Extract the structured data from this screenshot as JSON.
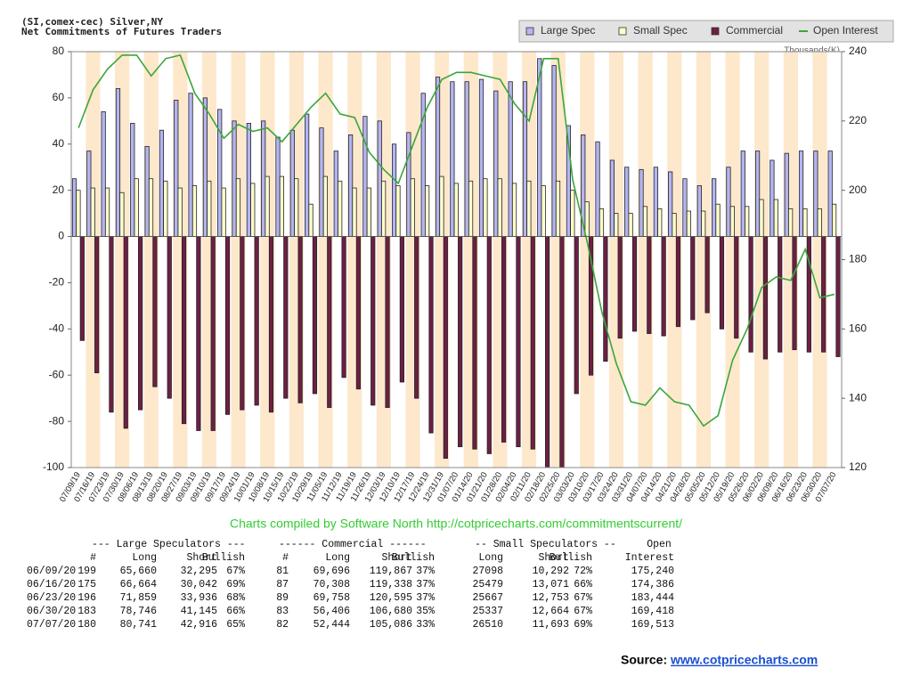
{
  "chart_data": {
    "type": "bar",
    "title": "(SI,comex-cec) Silver,NY",
    "subtitle": "Net Commitments of Futures Traders",
    "y2_label": "Thousands(K)",
    "annotation": "Charts compiled by Software North  http://cotpricecharts.com/commitmentscurrent/",
    "legend": "top-right",
    "categories": [
      "07/09/19",
      "07/16/19",
      "07/23/19",
      "07/30/19",
      "08/06/19",
      "08/13/19",
      "08/20/19",
      "08/27/19",
      "09/03/19",
      "09/10/19",
      "09/17/19",
      "09/24/19",
      "10/01/19",
      "10/08/19",
      "10/15/19",
      "10/22/19",
      "10/29/19",
      "11/05/19",
      "11/12/19",
      "11/19/19",
      "11/26/19",
      "12/03/19",
      "12/10/19",
      "12/17/19",
      "12/24/19",
      "12/31/19",
      "01/07/20",
      "01/14/20",
      "01/21/20",
      "01/28/20",
      "02/04/20",
      "02/11/20",
      "02/18/20",
      "02/25/20",
      "03/03/20",
      "03/10/20",
      "03/17/20",
      "03/24/20",
      "03/31/20",
      "04/07/20",
      "04/14/20",
      "04/21/20",
      "04/28/20",
      "05/05/20",
      "05/12/20",
      "05/19/20",
      "05/26/20",
      "06/02/20",
      "06/09/20",
      "06/16/20",
      "06/23/20",
      "06/30/20",
      "07/07/20"
    ],
    "series": [
      {
        "name": "Large Spec",
        "color": "#b4b4f0",
        "values": [
          25,
          37,
          54,
          64,
          49,
          39,
          46,
          59,
          62,
          60,
          55,
          50,
          49,
          50,
          43,
          46,
          53,
          47,
          37,
          44,
          52,
          50,
          40,
          45,
          62,
          69,
          67,
          67,
          68,
          63,
          67,
          67,
          77,
          74,
          48,
          44,
          41,
          33,
          30,
          29,
          30,
          28,
          25,
          22,
          25,
          30,
          37,
          37,
          33,
          36,
          37,
          37,
          37
        ]
      },
      {
        "name": "Small Spec",
        "color": "#ffffcc",
        "values": [
          20,
          21,
          21,
          19,
          25,
          25,
          24,
          21,
          22,
          24,
          21,
          25,
          23,
          26,
          26,
          25,
          14,
          26,
          24,
          21,
          21,
          24,
          22,
          25,
          22,
          26,
          23,
          24,
          25,
          25,
          23,
          24,
          22,
          24,
          20,
          15,
          12,
          10,
          10,
          13,
          12,
          10,
          11,
          11,
          14,
          13,
          13,
          16,
          16,
          12,
          12,
          12,
          14
        ]
      },
      {
        "name": "Commercial",
        "color": "#6e1f44",
        "values": [
          -45,
          -59,
          -76,
          -83,
          -75,
          -65,
          -70,
          -81,
          -84,
          -84,
          -77,
          -75,
          -73,
          -76,
          -70,
          -72,
          -68,
          -74,
          -61,
          -66,
          -73,
          -74,
          -63,
          -70,
          -85,
          -96,
          -91,
          -92,
          -94,
          -89,
          -91,
          -92,
          -100,
          -100,
          -68,
          -60,
          -54,
          -44,
          -41,
          -42,
          -43,
          -39,
          -36,
          -33,
          -40,
          -44,
          -50,
          -53,
          -50,
          -49,
          -50,
          -50,
          -52
        ]
      },
      {
        "name": "Open Interest",
        "color": "#3aa63a",
        "type": "line",
        "axis": "y2",
        "values": [
          218,
          229,
          235,
          239,
          239,
          233,
          238,
          239,
          228,
          222,
          215,
          219,
          217,
          218,
          214,
          219,
          224,
          228,
          222,
          221,
          211,
          206,
          202,
          213,
          224,
          232,
          234,
          234,
          233,
          232,
          225,
          220,
          238,
          238,
          203,
          185,
          165,
          150,
          139,
          138,
          143,
          139,
          138,
          132,
          135,
          151,
          160,
          172,
          175,
          174,
          183,
          169,
          170
        ]
      }
    ],
    "ylim": [
      -100,
      80
    ],
    "yticks": [
      -100,
      -80,
      -60,
      -40,
      -20,
      0,
      20,
      40,
      60,
      80
    ],
    "y2lim": [
      120,
      240
    ],
    "y2ticks": [
      120,
      140,
      160,
      180,
      200,
      220,
      240
    ]
  },
  "table": {
    "groups": [
      "--- Large Speculators ---",
      "------ Commercial ------",
      "-- Small Speculators --",
      "Open"
    ],
    "columns": [
      "#",
      "Long",
      "Short",
      "Bullish",
      "#",
      "Long",
      "Short",
      "Bullish",
      "Long",
      "Short",
      "Bullish",
      "Interest"
    ],
    "rows": [
      [
        "06/09/20",
        "199",
        "65,660",
        "32,295",
        "67%",
        "81",
        "69,696",
        "119,867",
        "37%",
        "27098",
        "10,292",
        "72%",
        "175,240"
      ],
      [
        "06/16/20",
        "175",
        "66,664",
        "30,042",
        "69%",
        "87",
        "70,308",
        "119,338",
        "37%",
        "25479",
        "13,071",
        "66%",
        "174,386"
      ],
      [
        "06/23/20",
        "196",
        "71,859",
        "33,936",
        "68%",
        "89",
        "69,758",
        "120,595",
        "37%",
        "25667",
        "12,753",
        "67%",
        "183,444"
      ],
      [
        "06/30/20",
        "183",
        "78,746",
        "41,145",
        "66%",
        "83",
        "56,406",
        "106,680",
        "35%",
        "25337",
        "12,664",
        "67%",
        "169,418"
      ],
      [
        "07/07/20",
        "180",
        "80,741",
        "42,916",
        "65%",
        "82",
        "52,444",
        "105,086",
        "33%",
        "26510",
        "11,693",
        "69%",
        "169,513"
      ]
    ]
  },
  "source": {
    "label": "Source:",
    "link": "www.cotpricecharts.com"
  }
}
